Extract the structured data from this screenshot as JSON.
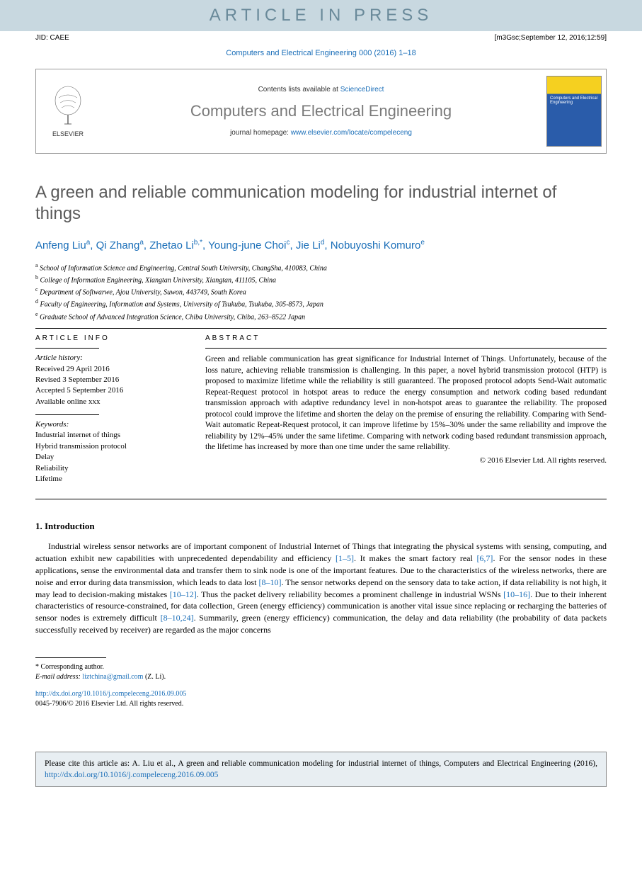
{
  "banner": "ARTICLE IN PRESS",
  "jid": "JID: CAEE",
  "m3g": "[m3Gsc;September 12, 2016;12:59]",
  "citationLine": "Computers and Electrical Engineering 000 (2016) 1–18",
  "header": {
    "contentsPrefix": "Contents lists available at ",
    "contentsLink": "ScienceDirect",
    "journalName": "Computers and Electrical Engineering",
    "homepagePrefix": "journal homepage: ",
    "homepageUrl": "www.elsevier.com/locate/compeleceng",
    "elsevier": "ELSEVIER"
  },
  "title": "A green and reliable communication modeling for industrial internet of things",
  "authors": [
    {
      "name": "Anfeng Liu",
      "sup": "a"
    },
    {
      "name": "Qi Zhang",
      "sup": "a"
    },
    {
      "name": "Zhetao Li",
      "sup": "b,*"
    },
    {
      "name": "Young-june Choi",
      "sup": "c"
    },
    {
      "name": "Jie Li",
      "sup": "d"
    },
    {
      "name": "Nobuyoshi Komuro",
      "sup": "e"
    }
  ],
  "affiliations": [
    {
      "sup": "a",
      "text": "School of Information Science and Engineering, Central South University, ChangSha, 410083, China"
    },
    {
      "sup": "b",
      "text": "College of Information Engineering, Xiangtan University, Xiangtan, 411105, China"
    },
    {
      "sup": "c",
      "text": "Department of Softwarwe, Ajou University, Suwon, 443749, South Korea"
    },
    {
      "sup": "d",
      "text": "Faculty of Engineering, Information and Systems, University of Tsukuba, Tsukuba, 305-8573, Japan"
    },
    {
      "sup": "e",
      "text": "Graduate School of Advanced Integration Science, Chiba University, Chiba, 263–8522 Japan"
    }
  ],
  "articleInfo": {
    "head": "ARTICLE INFO",
    "historyLabel": "Article history:",
    "received": "Received 29 April 2016",
    "revised": "Revised 3 September 2016",
    "accepted": "Accepted 5 September 2016",
    "online": "Available online xxx",
    "keywordsLabel": "Keywords:",
    "keywords": [
      "Industrial internet of things",
      "Hybrid transmission protocol",
      "Delay",
      "Reliability",
      "Lifetime"
    ]
  },
  "abstract": {
    "head": "ABSTRACT",
    "text": "Green and reliable communication has great significance for Industrial Internet of Things. Unfortunately, because of the loss nature, achieving reliable transmission is challenging. In this paper, a novel hybrid transmission protocol (HTP) is proposed to maximize lifetime while the reliability is still guaranteed. The proposed protocol adopts Send-Wait automatic Repeat-Request protocol in hotspot areas to reduce the energy consumption and network coding based redundant transmission approach with adaptive redundancy level in non-hotspot areas to guarantee the reliability. The proposed protocol could improve the lifetime and shorten the delay on the premise of ensuring the reliability. Comparing with Send-Wait automatic Repeat-Request protocol, it can improve lifetime by 15%–30% under the same reliability and improve the reliability by 12%–45% under the same lifetime. Comparing with network coding based redundant transmission approach, the lifetime has increased by more than one time under the same reliability.",
    "copyright": "© 2016 Elsevier Ltd. All rights reserved."
  },
  "intro": {
    "head": "1. Introduction",
    "p1a": "Industrial wireless sensor networks are of important component of Industrial Internet of Things that integrating the physical systems with sensing, computing, and actuation exhibit new capabilities with unprecedented dependability and efficiency ",
    "r1": "[1–5]",
    "p1b": ". It makes the smart factory real ",
    "r2": "[6,7]",
    "p1c": ". For the sensor nodes in these applications, sense the environmental data and transfer them to sink node is one of the important features. Due to the characteristics of the wireless networks, there are noise and error during data transmission, which leads to data lost ",
    "r3": "[8–10]",
    "p1d": ". The sensor networks depend on the sensory data to take action, if data reliability is not high, it may lead to decision-making mistakes ",
    "r4": "[10–12]",
    "p1e": ". Thus the packet delivery reliability becomes a prominent challenge in industrial WSNs ",
    "r5": "[10–16]",
    "p1f": ". Due to their inherent characteristics of resource-constrained, for data collection, Green (energy efficiency) communication is another vital issue since replacing or recharging the batteries of sensor nodes is extremely difficult ",
    "r6": "[8–10,24]",
    "p1g": ". Summarily, green (energy efficiency) communication, the delay and data reliability (the probability of data packets successfully received by receiver) are regarded as the major concerns"
  },
  "footnote": {
    "corr": "* Corresponding author.",
    "emailLabel": "E-mail address: ",
    "email": "liztchina@gmail.com",
    "emailSuffix": " (Z. Li)."
  },
  "doi": {
    "url": "http://dx.doi.org/10.1016/j.compeleceng.2016.09.005",
    "line2": "0045-7906/© 2016 Elsevier Ltd. All rights reserved."
  },
  "citeBox": {
    "prefix": "Please cite this article as: A. Liu et al., A green and reliable communication modeling for industrial internet of things, Computers and Electrical Engineering (2016), ",
    "url": "http://dx.doi.org/10.1016/j.compeleceng.2016.09.005"
  }
}
